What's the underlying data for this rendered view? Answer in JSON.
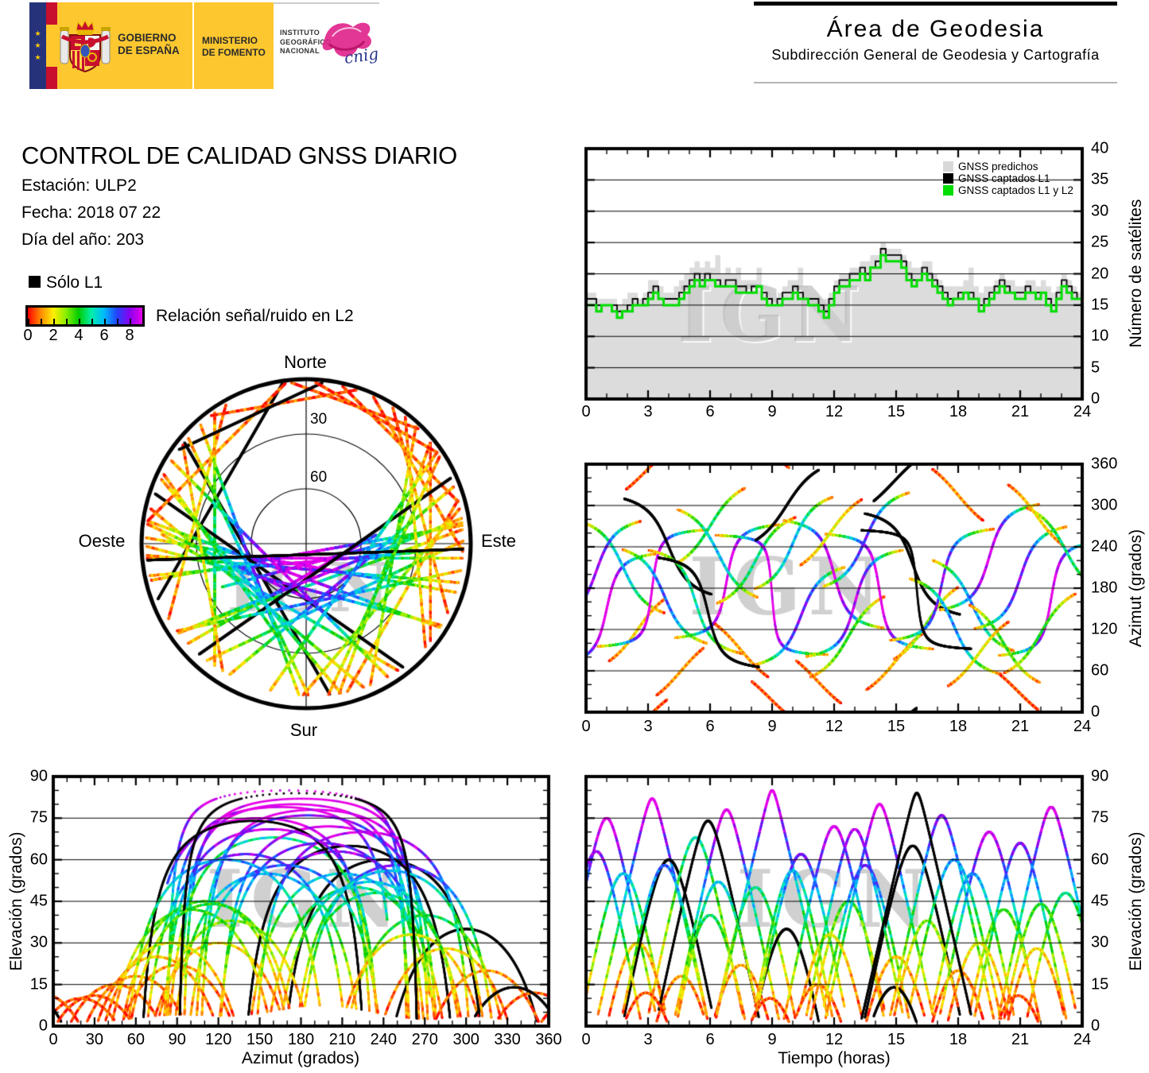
{
  "banner": {
    "gobierno": {
      "l1": "GOBIERNO",
      "l2": "DE ESPAÑA"
    },
    "ministerio": {
      "l1": "MINISTERIO",
      "l2": "DE FOMENTO"
    },
    "instituto": {
      "l1": "INSTITUTO",
      "l2": "GEOGRÁFICO",
      "l3": "NACIONAL"
    },
    "cnig": "cnig",
    "colors": {
      "flag_yellow": "#fdc72f",
      "flag_red": "#c8102e",
      "eu_blue": "#26337b",
      "star_yellow": "#ffcc00",
      "cnig_magenta": "#e0218a",
      "cnig_blue": "#27368c"
    }
  },
  "header": {
    "title": "Área de Geodesia",
    "subtitle": "Subdirección General de Geodesia y Cartografía"
  },
  "info": {
    "title": "CONTROL DE CALIDAD GNSS DIARIO",
    "station": "Estación: ULP2",
    "date": "Fecha: 2018 07 22",
    "doy": "Día del año: 203"
  },
  "legend": {
    "solo_l1": "Sólo L1",
    "snr_label": "Relación señal/ruido en L2",
    "ticks": [
      "0",
      "2",
      "4",
      "6",
      "8"
    ]
  },
  "watermark": "IGN",
  "skyplot": {
    "north": "Norte",
    "south": "Sur",
    "east": "Este",
    "west": "Oeste",
    "ring30": "30",
    "ring60": "60",
    "elevation_rings": [
      30,
      60
    ]
  },
  "charts": {
    "sats": {
      "ylabel": "Número de satélites",
      "x_ticks": [
        0,
        3,
        6,
        9,
        12,
        15,
        18,
        21,
        24
      ],
      "y_ticks": [
        0,
        5,
        10,
        15,
        20,
        25,
        30,
        35,
        40
      ],
      "legend": [
        {
          "label": "GNSS predichos",
          "color": "#d8d8d8"
        },
        {
          "label": "GNSS captados L1",
          "color": "#000000"
        },
        {
          "label": "GNSS captados L1 y L2",
          "color": "#00dd00"
        }
      ]
    },
    "az_t": {
      "ylabel": "Azimut (grados)",
      "x_ticks": [
        0,
        3,
        6,
        9,
        12,
        15,
        18,
        21,
        24
      ],
      "y_ticks": [
        0,
        60,
        120,
        180,
        240,
        300,
        360
      ]
    },
    "el_az": {
      "xlabel": "Azimut (grados)",
      "ylabel": "Elevación (grados)",
      "x_ticks": [
        0,
        30,
        60,
        90,
        120,
        150,
        180,
        210,
        240,
        270,
        300,
        330,
        360
      ],
      "y_ticks": [
        0,
        15,
        30,
        45,
        60,
        75,
        90
      ]
    },
    "el_t": {
      "xlabel": "Tiempo (horas)",
      "ylabel": "Elevación (grados)",
      "x_ticks": [
        0,
        3,
        6,
        9,
        12,
        15,
        18,
        21,
        24
      ],
      "y_ticks": [
        0,
        15,
        30,
        45,
        60,
        75,
        90
      ]
    }
  },
  "chart_data": {
    "satellite_counts": {
      "type": "area",
      "x_range_hours": [
        0,
        24
      ],
      "x_step_hours": 0.25,
      "y_range": [
        0,
        40
      ],
      "grid": "horizontal",
      "series": [
        {
          "name": "GNSS predichos",
          "style": "filled-step-area",
          "color": "#dcdcdc",
          "values": [
            17,
            17,
            16,
            16,
            16,
            16,
            15,
            16,
            17,
            17,
            16,
            17,
            19,
            19,
            18,
            17,
            17,
            18,
            19,
            20,
            21,
            22,
            21,
            22,
            21,
            23,
            20,
            21,
            20,
            21,
            19,
            19,
            19,
            21,
            18,
            17,
            17,
            17,
            18,
            19,
            19,
            21,
            18,
            17,
            17,
            16,
            16,
            17,
            19,
            20,
            20,
            21,
            21,
            22,
            22,
            23,
            23,
            25,
            24,
            24,
            24,
            23,
            22,
            21,
            21,
            22,
            22,
            20,
            19,
            18,
            18,
            18,
            18,
            19,
            21,
            18,
            17,
            18,
            18,
            19,
            20,
            19,
            19,
            18,
            18,
            19,
            19,
            18,
            19,
            18,
            17,
            18,
            20,
            19,
            18,
            17
          ]
        },
        {
          "name": "GNSS captados L1",
          "style": "step-line",
          "color": "#000000",
          "values": [
            16,
            16,
            15,
            15,
            15,
            15,
            14,
            14,
            15,
            16,
            15,
            16,
            17,
            18,
            16,
            16,
            16,
            16,
            17,
            18,
            19,
            20,
            19,
            20,
            19,
            19,
            18,
            19,
            19,
            18,
            18,
            17,
            18,
            18,
            17,
            16,
            15,
            16,
            17,
            17,
            18,
            17,
            16,
            16,
            16,
            15,
            14,
            16,
            18,
            19,
            19,
            20,
            20,
            21,
            20,
            21,
            22,
            24,
            23,
            23,
            23,
            22,
            20,
            19,
            19,
            21,
            20,
            19,
            18,
            17,
            16,
            16,
            17,
            17,
            17,
            16,
            15,
            16,
            17,
            18,
            19,
            18,
            17,
            17,
            17,
            18,
            17,
            17,
            17,
            16,
            15,
            17,
            19,
            18,
            17,
            16
          ]
        },
        {
          "name": "GNSS captados L1 y L2",
          "style": "step-line",
          "color": "#00dd00",
          "values": [
            15,
            15,
            14,
            15,
            15,
            14,
            13,
            14,
            14,
            15,
            15,
            15,
            16,
            17,
            16,
            15,
            15,
            15,
            16,
            17,
            18,
            19,
            18,
            19,
            19,
            18,
            18,
            18,
            18,
            17,
            17,
            17,
            17,
            18,
            16,
            15,
            15,
            15,
            16,
            16,
            17,
            16,
            16,
            15,
            15,
            14,
            13,
            15,
            17,
            18,
            18,
            19,
            19,
            20,
            19,
            21,
            21,
            23,
            22,
            22,
            22,
            21,
            19,
            18,
            19,
            20,
            19,
            18,
            17,
            16,
            15,
            16,
            16,
            17,
            16,
            16,
            14,
            15,
            16,
            17,
            18,
            17,
            17,
            16,
            16,
            17,
            17,
            16,
            17,
            15,
            14,
            16,
            18,
            17,
            16,
            16
          ]
        }
      ]
    },
    "snr_colormap": {
      "range": [
        0,
        9
      ],
      "stops": [
        "#ff0000",
        "#ff8800",
        "#ffee00",
        "#88ee00",
        "#00cc00",
        "#00eeaa",
        "#00baff",
        "#2244ff",
        "#8800ee",
        "#e800e8"
      ]
    },
    "plots": [
      {
        "id": "skyplot",
        "type": "scatter",
        "projection": "polar-azimuthal",
        "compass": [
          "Norte",
          "Este",
          "Sur",
          "Oeste"
        ],
        "elevation_rings": [
          30,
          60
        ],
        "data_source": "passes"
      },
      {
        "id": "azimut_vs_tiempo",
        "type": "scatter",
        "x_range": [
          0,
          24
        ],
        "y_range": [
          0,
          360
        ],
        "grid_y": [
          60,
          120,
          180,
          240,
          300
        ],
        "data_source": "passes"
      },
      {
        "id": "elevacion_vs_azimut",
        "type": "scatter",
        "x_range": [
          0,
          360
        ],
        "y_range": [
          0,
          90
        ],
        "grid_y": [
          15,
          30,
          45,
          60,
          75
        ],
        "data_source": "passes"
      },
      {
        "id": "elevacion_vs_tiempo",
        "type": "scatter",
        "x_range": [
          0,
          24
        ],
        "y_range": [
          0,
          90
        ],
        "grid_y": [
          15,
          30,
          45,
          60,
          75
        ],
        "data_source": "passes"
      }
    ],
    "passes": {
      "fields": [
        "t_culminacion_h",
        "duracion_h",
        "azimut_culminacion_deg",
        "elevacion_max_deg",
        "direccion",
        "solo_l1",
        "snr_base",
        "snr_por_10deg"
      ],
      "rows": [
        [
          1.0,
          5.0,
          150,
          75,
          1,
          0,
          0.4,
          1.2
        ],
        [
          1.8,
          4.2,
          210,
          55,
          -1,
          0,
          0.3,
          1.0
        ],
        [
          2.5,
          3.0,
          120,
          30,
          1,
          0,
          0.3,
          0.5
        ],
        [
          3.2,
          5.5,
          180,
          82,
          1,
          0,
          0.5,
          1.1
        ],
        [
          4.0,
          4.5,
          240,
          60,
          -1,
          1,
          0,
          0
        ],
        [
          4.6,
          2.5,
          60,
          18,
          1,
          0,
          0.2,
          0.6
        ],
        [
          5.3,
          4.8,
          160,
          68,
          -1,
          0,
          0.4,
          0.7
        ],
        [
          6.0,
          3.5,
          270,
          40,
          1,
          0,
          0.3,
          1.1
        ],
        [
          6.8,
          5.2,
          190,
          78,
          1,
          0,
          0.5,
          1.15
        ],
        [
          7.5,
          2.8,
          90,
          22,
          -1,
          0,
          0.2,
          0.5
        ],
        [
          8.2,
          4.0,
          220,
          50,
          1,
          0,
          0.4,
          0.9
        ],
        [
          9.0,
          5.6,
          170,
          85,
          -1,
          0,
          0.4,
          1.05
        ],
        [
          9.7,
          3.2,
          300,
          35,
          1,
          1,
          0,
          0
        ],
        [
          10.4,
          4.6,
          140,
          62,
          1,
          0,
          0.4,
          1.2
        ],
        [
          11.2,
          2.4,
          45,
          15,
          -1,
          0,
          0.2,
          0.5
        ],
        [
          12.0,
          5.0,
          200,
          72,
          -1,
          0,
          0.5,
          1.18
        ],
        [
          12.7,
          3.8,
          110,
          45,
          1,
          0,
          0.3,
          0.8
        ],
        [
          13.5,
          4.4,
          250,
          58,
          1,
          0,
          0.4,
          1.25
        ],
        [
          14.2,
          5.4,
          175,
          80,
          -1,
          0,
          0.5,
          1.12
        ],
        [
          15.0,
          3.0,
          75,
          25,
          1,
          0,
          0.2,
          0.55
        ],
        [
          15.8,
          4.8,
          215,
          65,
          -1,
          1,
          0,
          0
        ],
        [
          16.5,
          3.4,
          130,
          38,
          1,
          0,
          0.3,
          0.75
        ],
        [
          17.2,
          5.2,
          185,
          76,
          1,
          0,
          0.4,
          1.0
        ],
        [
          18.0,
          2.6,
          315,
          20,
          -1,
          0,
          0.2,
          0.5
        ],
        [
          18.7,
          4.2,
          155,
          55,
          -1,
          0,
          0.3,
          1.1
        ],
        [
          19.5,
          5.0,
          225,
          70,
          1,
          0,
          0.5,
          1.2
        ],
        [
          20.2,
          3.6,
          100,
          42,
          -1,
          0,
          0.3,
          0.85
        ],
        [
          21.0,
          4.6,
          195,
          66,
          1,
          0,
          0.4,
          1.15
        ],
        [
          21.8,
          2.9,
          285,
          28,
          -1,
          0,
          0.2,
          0.6
        ],
        [
          22.5,
          5.3,
          165,
          79,
          1,
          0,
          0.5,
          1.1
        ],
        [
          23.2,
          3.9,
          235,
          48,
          -1,
          0,
          0.3,
          0.95
        ],
        [
          0.5,
          4.4,
          205,
          63,
          1,
          0,
          0.4,
          1.25
        ],
        [
          5.9,
          5.1,
          145,
          74,
          -1,
          1,
          0,
          0
        ],
        [
          11.8,
          3.3,
          260,
          33,
          1,
          0,
          0.3,
          0.6
        ],
        [
          17.8,
          4.7,
          125,
          60,
          -1,
          0,
          0.4,
          1.0
        ],
        [
          2.9,
          2.2,
          350,
          12,
          1,
          0,
          0.2,
          0.4
        ],
        [
          8.9,
          2.0,
          20,
          10,
          -1,
          0,
          0.2,
          0.4
        ],
        [
          14.9,
          2.3,
          335,
          14,
          1,
          1,
          0,
          0
        ],
        [
          20.9,
          2.1,
          30,
          11,
          -1,
          0,
          0.2,
          0.4
        ],
        [
          6.4,
          4.1,
          230,
          52,
          -1,
          0,
          0.4,
          1.05
        ],
        [
          13.0,
          4.9,
          158,
          71,
          1,
          0,
          0.4,
          1.15
        ],
        [
          19.0,
          3.1,
          85,
          30,
          1,
          0,
          0.3,
          0.65
        ],
        [
          3.8,
          4.3,
          168,
          58,
          -1,
          0,
          0.3,
          1.15
        ],
        [
          10.0,
          4.0,
          245,
          56,
          1,
          0,
          0.4,
          1.0
        ],
        [
          16.0,
          5.5,
          178,
          84,
          -1,
          1,
          0,
          0
        ],
        [
          22.0,
          3.7,
          115,
          44,
          1,
          0,
          0.3,
          0.85
        ]
      ]
    }
  }
}
